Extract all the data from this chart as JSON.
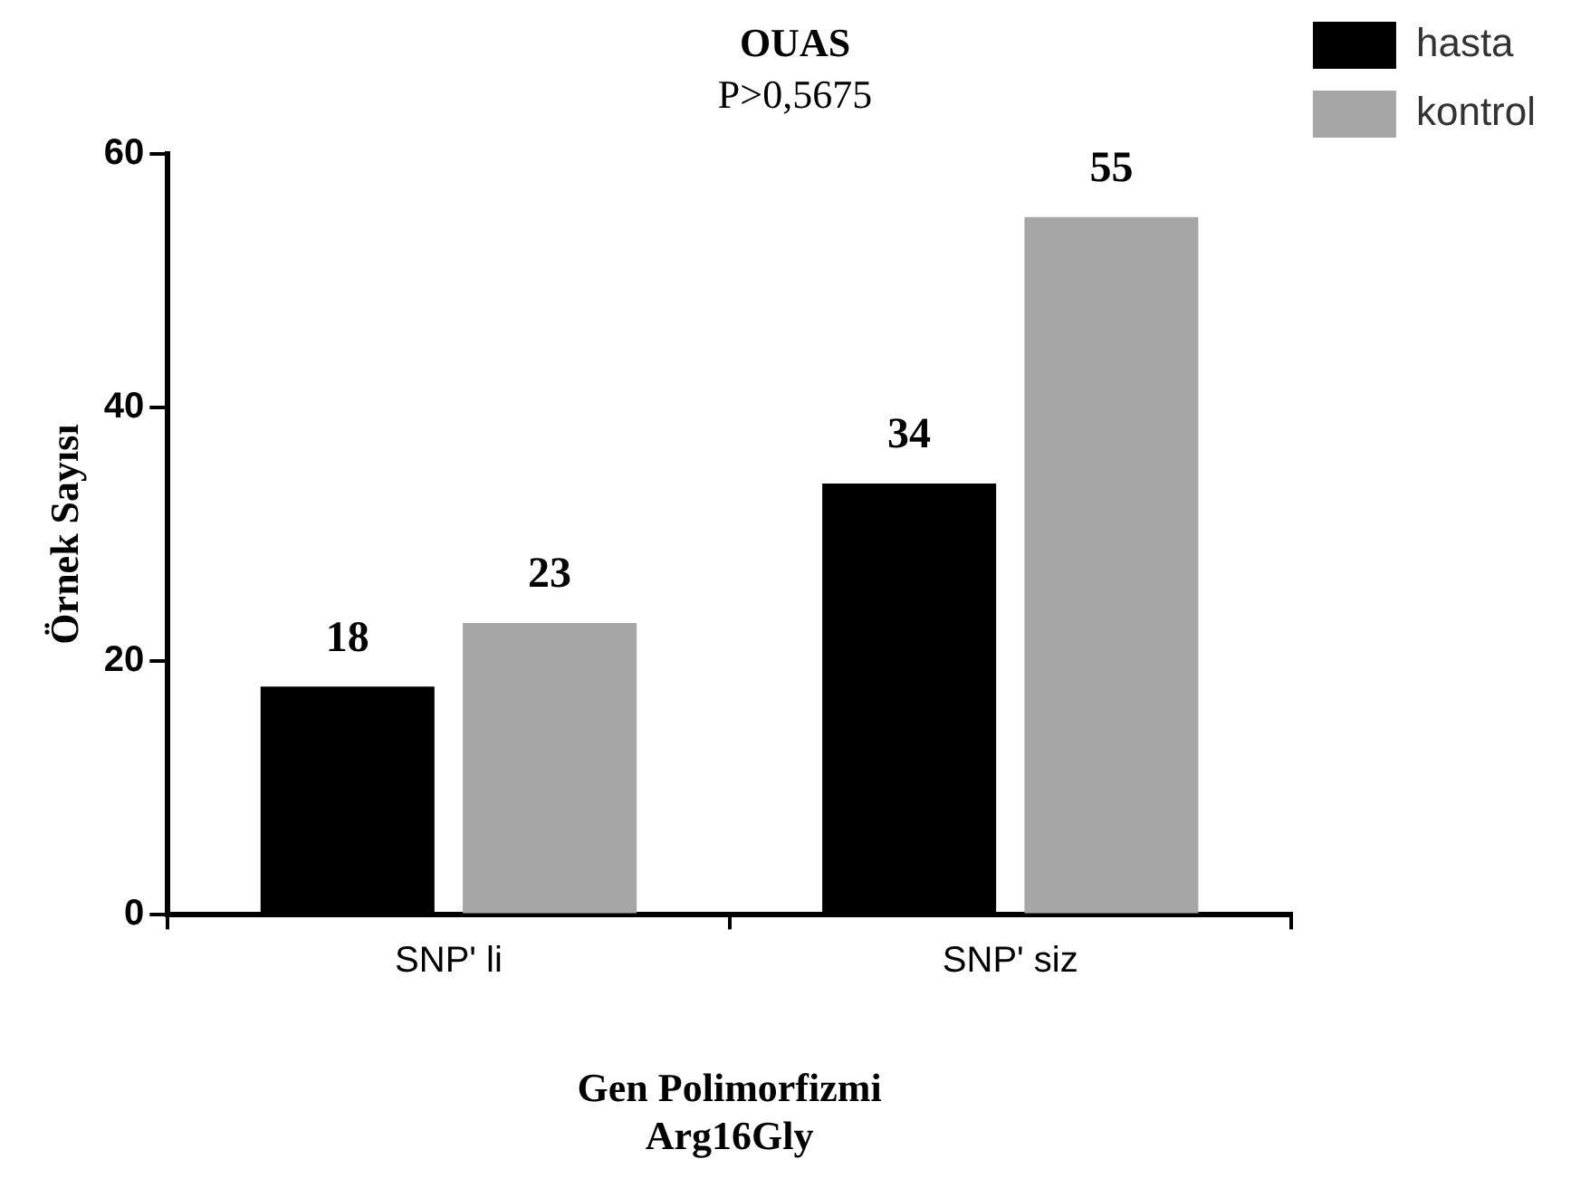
{
  "chart_data": {
    "type": "bar",
    "title": "OUAS",
    "subtitle": "P>0,5675",
    "xlabel": "Gen Polimorfizmi\nArg16Gly",
    "ylabel": "Örnek Sayısı",
    "categories": [
      "SNP' li",
      "SNP' siz"
    ],
    "series": [
      {
        "name": "hasta",
        "color": "#000000",
        "values": [
          18,
          34
        ]
      },
      {
        "name": "kontrol",
        "color": "#a6a6a6",
        "values": [
          23,
          55
        ]
      }
    ],
    "ylim": [
      0,
      60
    ],
    "yticks": [
      0,
      20,
      40,
      60
    ],
    "grid": false,
    "legend": "top right",
    "data_labels": true
  }
}
